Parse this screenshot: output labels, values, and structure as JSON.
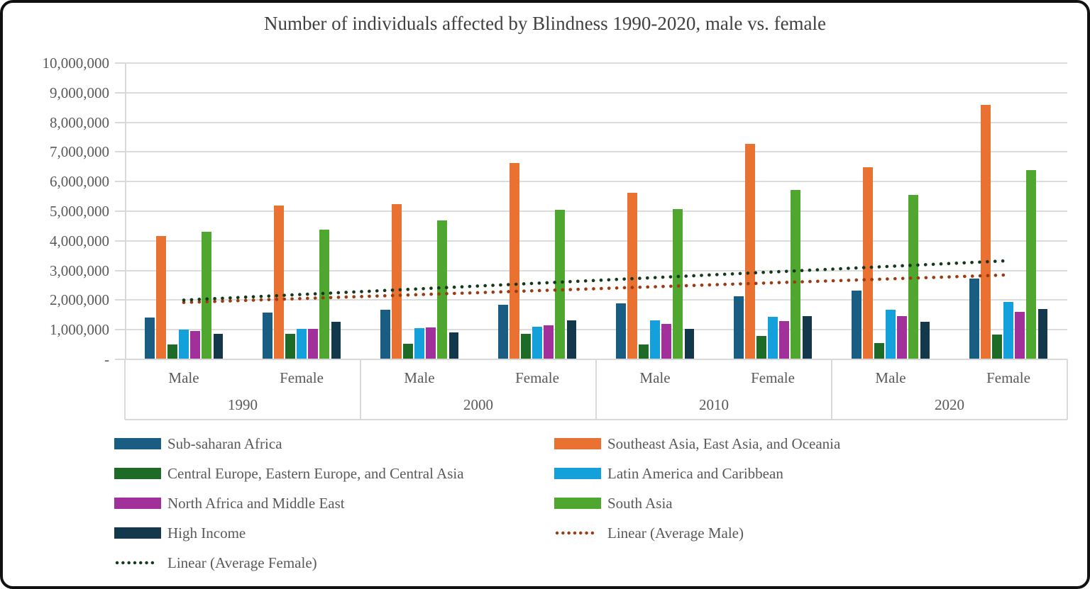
{
  "chart_data": {
    "type": "bar",
    "title": "Number of individuals affected by Blindness 1990-2020, male vs. female",
    "y_axis": {
      "min": 0,
      "max": 10000000,
      "tick_step": 1000000,
      "tick_labels": [
        "-",
        "1,000,000",
        "2,000,000",
        "3,000,000",
        "4,000,000",
        "5,000,000",
        "6,000,000",
        "7,000,000",
        "8,000,000",
        "9,000,000",
        "10,000,000"
      ],
      "gridlines": true
    },
    "x_axis": {
      "group_labels": [
        "1990",
        "2000",
        "2010",
        "2020"
      ],
      "subgroup_labels": [
        "Male",
        "Female"
      ]
    },
    "categories": [
      "1990 Male",
      "1990 Female",
      "2000 Male",
      "2000 Female",
      "2010 Male",
      "2010 Female",
      "2020 Male",
      "2020 Female"
    ],
    "series": [
      {
        "name": "Sub-saharan Africa",
        "color": "#1A5D82",
        "values": [
          1420000,
          1580000,
          1670000,
          1850000,
          1900000,
          2130000,
          2330000,
          2730000
        ]
      },
      {
        "name": "Southeast Asia, East Asia, and Oceania",
        "color": "#E97132",
        "values": [
          4170000,
          5200000,
          5250000,
          6630000,
          5620000,
          7280000,
          6480000,
          8580000
        ]
      },
      {
        "name": "Central Europe, Eastern Europe, and Central Asia",
        "color": "#1E6B28",
        "values": [
          500000,
          850000,
          520000,
          850000,
          500000,
          800000,
          560000,
          840000
        ]
      },
      {
        "name": "Latin America and Caribbean",
        "color": "#14A0DB",
        "values": [
          1000000,
          1020000,
          1050000,
          1100000,
          1310000,
          1430000,
          1680000,
          1930000
        ]
      },
      {
        "name": "North Africa and Middle East",
        "color": "#A2309A",
        "values": [
          950000,
          1030000,
          1080000,
          1150000,
          1200000,
          1300000,
          1450000,
          1600000
        ]
      },
      {
        "name": "South Asia",
        "color": "#4FA72F",
        "values": [
          4300000,
          4380000,
          4700000,
          5050000,
          5070000,
          5720000,
          5550000,
          6380000
        ]
      },
      {
        "name": "High Income",
        "color": "#14384B",
        "values": [
          870000,
          1270000,
          900000,
          1310000,
          1020000,
          1460000,
          1270000,
          1700000
        ]
      }
    ],
    "trendlines": [
      {
        "name": "Linear (Average Male)",
        "color": "#9C3A10",
        "style": "dotted",
        "start_value": 1920000,
        "end_value": 2850000
      },
      {
        "name": "Linear (Average Female)",
        "color": "#14391C",
        "style": "dotted",
        "start_value": 2000000,
        "end_value": 3330000
      }
    ],
    "legend_position": "bottom"
  },
  "legend": {
    "rows": [
      [
        {
          "label": "Sub-saharan Africa",
          "color": "#1A5D82",
          "swatch": "bar"
        },
        {
          "label": "Southeast Asia, East Asia, and Oceania",
          "color": "#E97132",
          "swatch": "bar"
        }
      ],
      [
        {
          "label": "Central Europe, Eastern Europe, and Central Asia",
          "color": "#1E6B28",
          "swatch": "bar"
        },
        {
          "label": "Latin America and Caribbean",
          "color": "#14A0DB",
          "swatch": "bar"
        }
      ],
      [
        {
          "label": "North Africa and Middle East",
          "color": "#A2309A",
          "swatch": "bar"
        },
        {
          "label": "South Asia",
          "color": "#4FA72F",
          "swatch": "bar"
        }
      ],
      [
        {
          "label": "High Income",
          "color": "#14384B",
          "swatch": "bar"
        },
        {
          "label": "Linear (Average Male)",
          "color": "#9C3A10",
          "swatch": "dots"
        }
      ],
      [
        {
          "label": "Linear (Average Female)",
          "color": "#14391C",
          "swatch": "dots"
        }
      ]
    ]
  },
  "colors": {
    "background": "#FFFFFF",
    "frame_border": "#111111",
    "gridline": "#DCDCDC",
    "axis_box_border": "#D9D9D9",
    "title_text": "#404040",
    "axis_text": "#595959",
    "legend_text": "#595959"
  }
}
